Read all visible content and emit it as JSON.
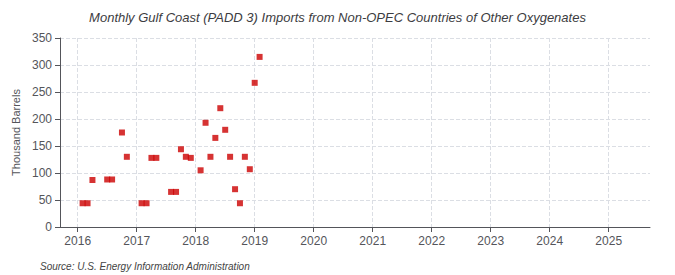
{
  "chart_data": {
    "type": "scatter",
    "title": "Monthly Gulf Coast (PADD 3) Imports from Non-OPEC Countries of Other Oxygenates",
    "ylabel": "Thousand Barrels",
    "annotations": [
      "Source: U.S. Energy Information Administration"
    ],
    "x": [
      2016.083,
      2016.167,
      2016.25,
      2016.5,
      2016.583,
      2016.75,
      2016.833,
      2017.083,
      2017.167,
      2017.25,
      2017.333,
      2017.583,
      2017.667,
      2017.75,
      2017.833,
      2017.917,
      2018.083,
      2018.167,
      2018.25,
      2018.333,
      2018.417,
      2018.5,
      2018.583,
      2018.667,
      2018.75,
      2018.833,
      2018.917,
      2019.0,
      2019.083
    ],
    "values": [
      44,
      44,
      87,
      88,
      88,
      175,
      130,
      44,
      44,
      128,
      128,
      65,
      65,
      144,
      130,
      128,
      105,
      193,
      130,
      165,
      220,
      180,
      130,
      70,
      44,
      130,
      107,
      267,
      315
    ],
    "color": "#cc0000",
    "marker": "square",
    "xlim": [
      2015.7,
      2025.7
    ],
    "xticks": [
      2016,
      2017,
      2018,
      2019,
      2020,
      2021,
      2022,
      2023,
      2024,
      2025
    ],
    "ylim": [
      0,
      350
    ],
    "yticks": [
      0,
      50,
      100,
      150,
      200,
      250,
      300,
      350
    ],
    "grid": true
  }
}
